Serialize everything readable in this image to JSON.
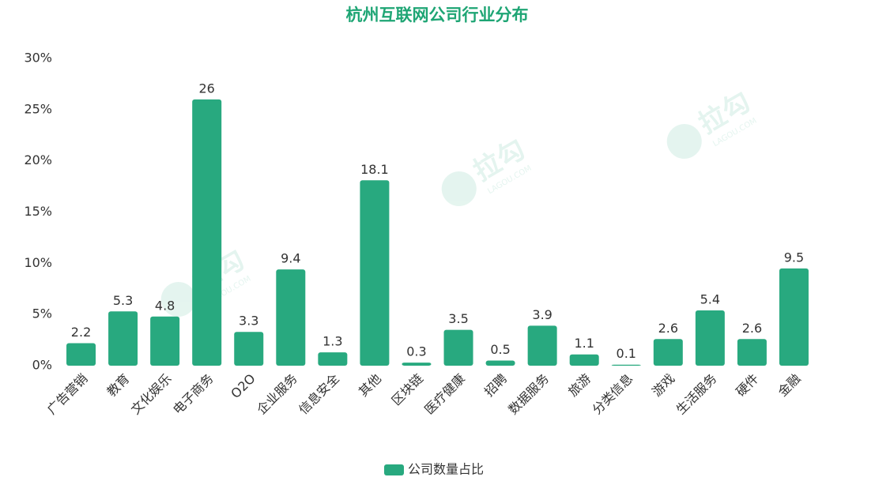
{
  "chart_data": {
    "type": "bar",
    "title": "杭州互联网公司行业分布",
    "categories": [
      "广告营销",
      "教育",
      "文化娱乐",
      "电子商务",
      "O2O",
      "企业服务",
      "信息安全",
      "其他",
      "区块链",
      "医疗健康",
      "招聘",
      "数据服务",
      "旅游",
      "分类信息",
      "游戏",
      "生活服务",
      "硬件",
      "金融"
    ],
    "series": [
      {
        "name": "公司数量占比",
        "color": "#28a97f",
        "values": [
          2.2,
          5.3,
          4.8,
          26,
          3.3,
          9.4,
          1.3,
          18.1,
          0.3,
          3.5,
          0.5,
          3.9,
          1.1,
          0.1,
          2.6,
          5.4,
          2.6,
          9.5
        ]
      }
    ],
    "ylim": [
      0,
      30
    ],
    "yticks": [
      {
        "value": 0,
        "label": "0%"
      },
      {
        "value": 5,
        "label": "5%"
      },
      {
        "value": 10,
        "label": "10%"
      },
      {
        "value": 15,
        "label": "15%"
      },
      {
        "value": 20,
        "label": "20%"
      },
      {
        "value": 25,
        "label": "25%"
      },
      {
        "value": 30,
        "label": "30%"
      }
    ],
    "grid": false,
    "legend": "bottom",
    "watermark": {
      "text": "拉勾",
      "subtext": "LAGOU.COM"
    }
  }
}
